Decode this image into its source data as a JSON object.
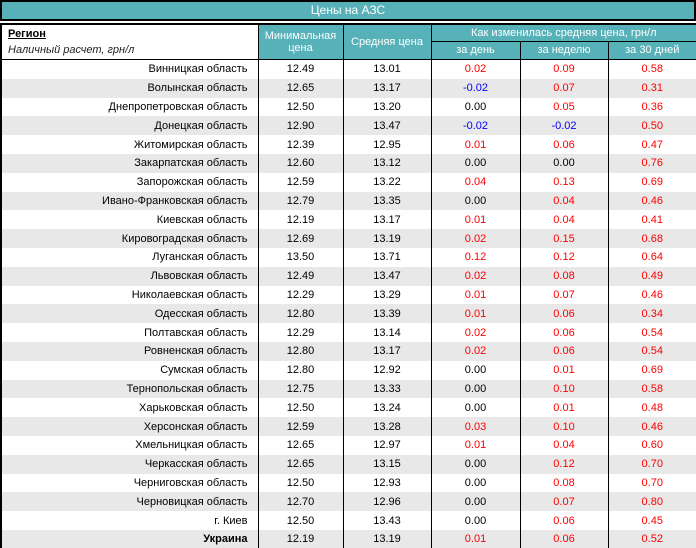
{
  "title": "Цены на АЗС",
  "colors": {
    "accent": "#56b1b8",
    "stripe": "#e8e8e8",
    "positive": "#ff0000",
    "negative": "#0000ff",
    "border": "#000000"
  },
  "header": {
    "region": "Регион",
    "region_sub": "Наличный расчет, грн/л",
    "min_price": "Минимальная цена",
    "avg_price": "Средняя цена",
    "change_group": "Как изменилась средняя цена, грн/л",
    "change_day": "за день",
    "change_week": "за неделю",
    "change_month": "за 30 дней"
  },
  "chart_data": {
    "type": "table",
    "title": "Цены на АЗС",
    "columns": [
      "Регион",
      "Минимальная цена",
      "Средняя цена",
      "за день",
      "за неделю",
      "за 30 дней"
    ],
    "rows": [
      {
        "region": "Винницкая область",
        "min": "12.49",
        "avg": "13.01",
        "day": "0.02",
        "week": "0.09",
        "month": "0.58"
      },
      {
        "region": "Волынская область",
        "min": "12.65",
        "avg": "13.17",
        "day": "-0.02",
        "week": "0.07",
        "month": "0.31"
      },
      {
        "region": "Днепропетровская область",
        "min": "12.50",
        "avg": "13.20",
        "day": "0.00",
        "week": "0.05",
        "month": "0.36"
      },
      {
        "region": "Донецкая область",
        "min": "12.90",
        "avg": "13.47",
        "day": "-0.02",
        "week": "-0.02",
        "month": "0.50"
      },
      {
        "region": "Житомирская область",
        "min": "12.39",
        "avg": "12.95",
        "day": "0.01",
        "week": "0.06",
        "month": "0.47"
      },
      {
        "region": "Закарпатская область",
        "min": "12.60",
        "avg": "13.12",
        "day": "0.00",
        "week": "0.00",
        "month": "0.76"
      },
      {
        "region": "Запорожская область",
        "min": "12.59",
        "avg": "13.22",
        "day": "0.04",
        "week": "0.13",
        "month": "0.69"
      },
      {
        "region": "Ивано-Франковская область",
        "min": "12.79",
        "avg": "13.35",
        "day": "0.00",
        "week": "0.04",
        "month": "0.46"
      },
      {
        "region": "Киевская область",
        "min": "12.19",
        "avg": "13.17",
        "day": "0.01",
        "week": "0.04",
        "month": "0.41"
      },
      {
        "region": "Кировоградская область",
        "min": "12.69",
        "avg": "13.19",
        "day": "0.02",
        "week": "0.15",
        "month": "0.68"
      },
      {
        "region": "Луганская область",
        "min": "13.50",
        "avg": "13.71",
        "day": "0.12",
        "week": "0.12",
        "month": "0.64"
      },
      {
        "region": "Львовская область",
        "min": "12.49",
        "avg": "13.47",
        "day": "0.02",
        "week": "0.08",
        "month": "0.49"
      },
      {
        "region": "Николаевская область",
        "min": "12.29",
        "avg": "13.29",
        "day": "0.01",
        "week": "0.07",
        "month": "0.46"
      },
      {
        "region": "Одесская область",
        "min": "12.80",
        "avg": "13.39",
        "day": "0.01",
        "week": "0.06",
        "month": "0.34"
      },
      {
        "region": "Полтавская область",
        "min": "12.29",
        "avg": "13.14",
        "day": "0.02",
        "week": "0.06",
        "month": "0.54"
      },
      {
        "region": "Ровненская область",
        "min": "12.80",
        "avg": "13.17",
        "day": "0.02",
        "week": "0.06",
        "month": "0.54"
      },
      {
        "region": "Сумская область",
        "min": "12.80",
        "avg": "12.92",
        "day": "0.00",
        "week": "0.01",
        "month": "0.69"
      },
      {
        "region": "Тернопольская область",
        "min": "12.75",
        "avg": "13.33",
        "day": "0.00",
        "week": "0.10",
        "month": "0.58"
      },
      {
        "region": "Харьковская область",
        "min": "12.50",
        "avg": "13.24",
        "day": "0.00",
        "week": "0.01",
        "month": "0.48"
      },
      {
        "region": "Херсонская область",
        "min": "12.59",
        "avg": "13.28",
        "day": "0.03",
        "week": "0.10",
        "month": "0.46"
      },
      {
        "region": "Хмельницкая область",
        "min": "12.65",
        "avg": "12.97",
        "day": "0.01",
        "week": "0.04",
        "month": "0.60"
      },
      {
        "region": "Черкасская область",
        "min": "12.65",
        "avg": "13.15",
        "day": "0.00",
        "week": "0.12",
        "month": "0.70"
      },
      {
        "region": "Черниговская область",
        "min": "12.50",
        "avg": "12.93",
        "day": "0.00",
        "week": "0.08",
        "month": "0.70"
      },
      {
        "region": "Черновицкая область",
        "min": "12.70",
        "avg": "12.96",
        "day": "0.00",
        "week": "0.07",
        "month": "0.80"
      },
      {
        "region": "г. Киев",
        "min": "12.50",
        "avg": "13.43",
        "day": "0.00",
        "week": "0.06",
        "month": "0.45"
      },
      {
        "region": "Украина",
        "min": "12.19",
        "avg": "13.19",
        "day": "0.01",
        "week": "0.06",
        "month": "0.52",
        "bold": true
      }
    ]
  }
}
